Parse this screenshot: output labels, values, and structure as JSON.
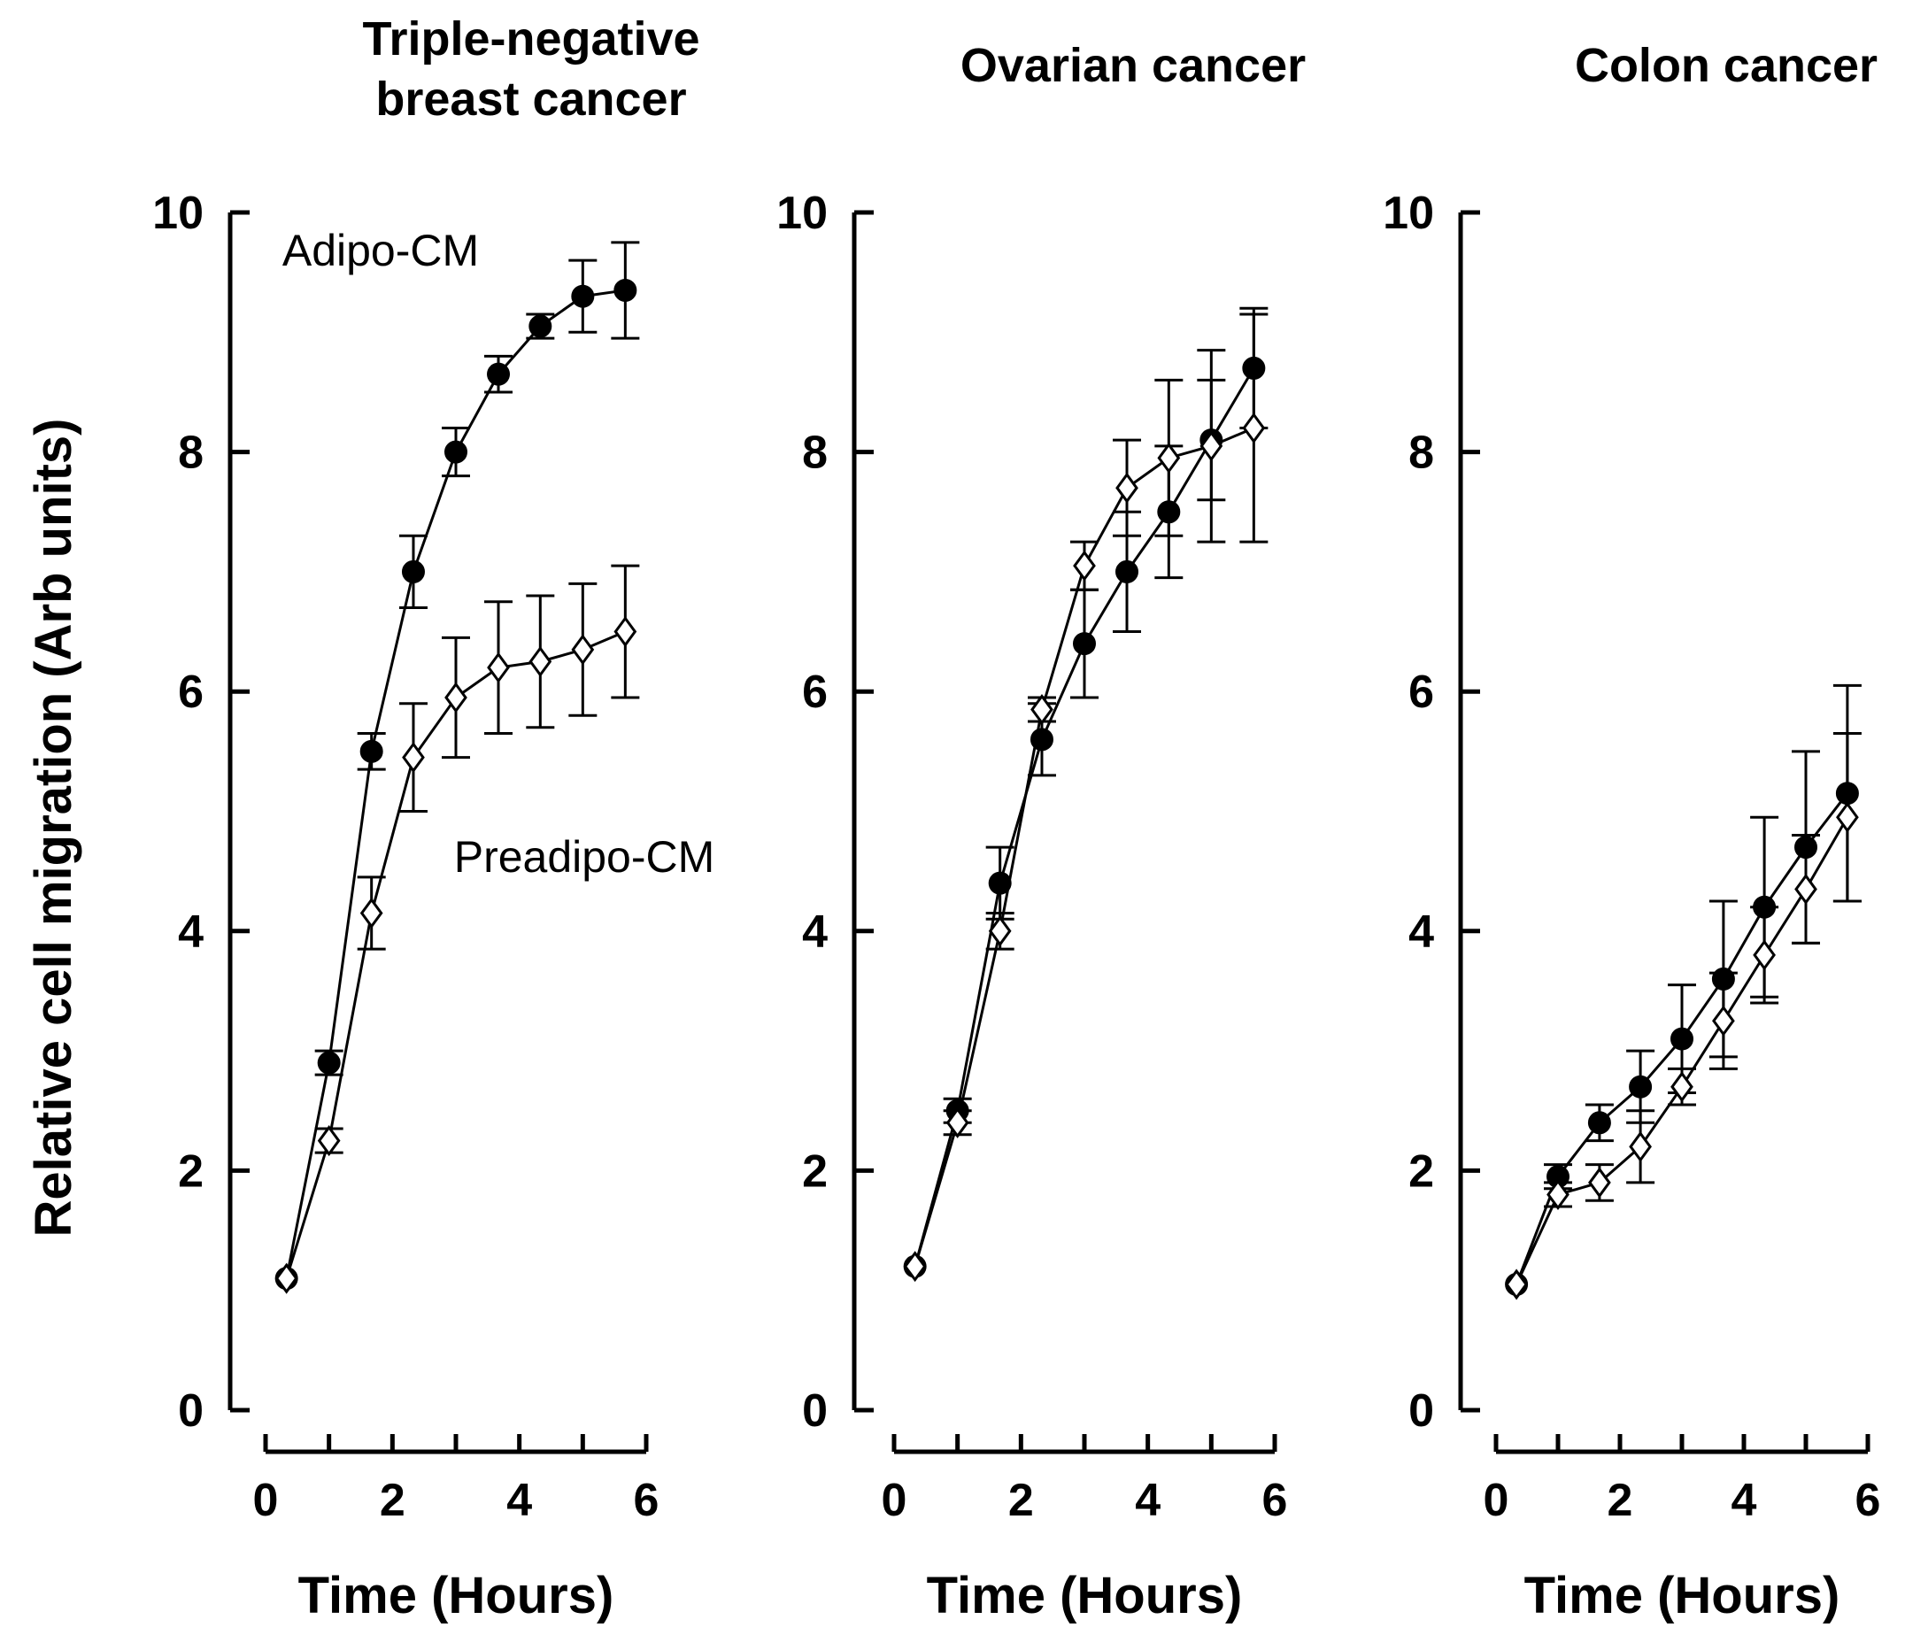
{
  "y_axis_label": "Relative cell migration (Arb units)",
  "chart_data": [
    {
      "type": "line",
      "title_lines": [
        "Triple-negative",
        "breast cancer"
      ],
      "xlabel": "Time (Hours)",
      "ylabel": "Relative cell migration (Arb units)",
      "xlim": [
        0,
        6
      ],
      "ylim": [
        0,
        10
      ],
      "xticks": [
        "0",
        "2",
        "4",
        "6"
      ],
      "yticks": [
        "0",
        "2",
        "4",
        "6",
        "8",
        "10"
      ],
      "annotations": [
        "Adipo-CM",
        "Preadipo-CM"
      ],
      "series": [
        {
          "name": "Adipo-CM",
          "marker": "filled-circle",
          "x": [
            0.33,
            1.0,
            1.67,
            2.33,
            3.0,
            3.67,
            4.33,
            5.0,
            5.67
          ],
          "y": [
            1.1,
            2.9,
            5.5,
            7.0,
            8.0,
            8.65,
            9.05,
            9.3,
            9.35
          ],
          "err": [
            0.05,
            0.1,
            0.15,
            0.3,
            0.2,
            0.15,
            0.1,
            0.3,
            0.4
          ]
        },
        {
          "name": "Preadipo-CM",
          "marker": "open-diamond",
          "x": [
            0.33,
            1.0,
            1.67,
            2.33,
            3.0,
            3.67,
            4.33,
            5.0,
            5.67
          ],
          "y": [
            1.1,
            2.25,
            4.15,
            5.45,
            5.95,
            6.2,
            6.25,
            6.35,
            6.5
          ],
          "err": [
            0.05,
            0.1,
            0.3,
            0.45,
            0.5,
            0.55,
            0.55,
            0.55,
            0.55
          ]
        }
      ]
    },
    {
      "type": "line",
      "title_lines": [
        "Ovarian cancer"
      ],
      "xlabel": "Time (Hours)",
      "xlim": [
        0,
        6
      ],
      "ylim": [
        0,
        10
      ],
      "xticks": [
        "0",
        "2",
        "4",
        "6"
      ],
      "yticks": [
        "0",
        "2",
        "4",
        "6",
        "8",
        "10"
      ],
      "series": [
        {
          "name": "Adipo-CM",
          "marker": "filled-circle",
          "x": [
            0.33,
            1.0,
            1.67,
            2.33,
            3.0,
            3.67,
            4.33,
            5.0,
            5.67
          ],
          "y": [
            1.2,
            2.5,
            4.4,
            5.6,
            6.4,
            7.0,
            7.5,
            8.1,
            8.7
          ],
          "err": [
            0.05,
            0.1,
            0.3,
            0.3,
            0.45,
            0.5,
            0.55,
            0.5,
            0.5
          ]
        },
        {
          "name": "Preadipo-CM",
          "marker": "open-diamond",
          "x": [
            0.33,
            1.0,
            1.67,
            2.33,
            3.0,
            3.67,
            4.33,
            5.0,
            5.67
          ],
          "y": [
            1.2,
            2.4,
            4.0,
            5.85,
            7.05,
            7.7,
            7.95,
            8.05,
            8.2
          ],
          "err": [
            0.05,
            0.1,
            0.15,
            0.1,
            0.2,
            0.4,
            0.65,
            0.8,
            0.95
          ]
        }
      ]
    },
    {
      "type": "line",
      "title_lines": [
        "Colon cancer"
      ],
      "xlabel": "Time (Hours)",
      "xlim": [
        0,
        6
      ],
      "ylim": [
        0,
        10
      ],
      "xticks": [
        "0",
        "2",
        "4",
        "6"
      ],
      "yticks": [
        "0",
        "2",
        "4",
        "6",
        "8",
        "10"
      ],
      "series": [
        {
          "name": "Adipo-CM",
          "marker": "filled-circle",
          "x": [
            0.33,
            1.0,
            1.67,
            2.33,
            3.0,
            3.67,
            4.33,
            5.0,
            5.67
          ],
          "y": [
            1.05,
            1.95,
            2.4,
            2.7,
            3.1,
            3.6,
            4.2,
            4.7,
            5.15
          ],
          "err": [
            0.05,
            0.1,
            0.15,
            0.3,
            0.45,
            0.65,
            0.75,
            0.8,
            0.9
          ]
        },
        {
          "name": "Preadipo-CM",
          "marker": "open-diamond",
          "x": [
            0.33,
            1.0,
            1.67,
            2.33,
            3.0,
            3.67,
            4.33,
            5.0,
            5.67
          ],
          "y": [
            1.05,
            1.8,
            1.9,
            2.2,
            2.7,
            3.25,
            3.8,
            4.35,
            4.95
          ],
          "err": [
            0.05,
            0.1,
            0.15,
            0.3,
            0.15,
            0.4,
            0.4,
            0.45,
            0.7
          ]
        }
      ]
    }
  ]
}
